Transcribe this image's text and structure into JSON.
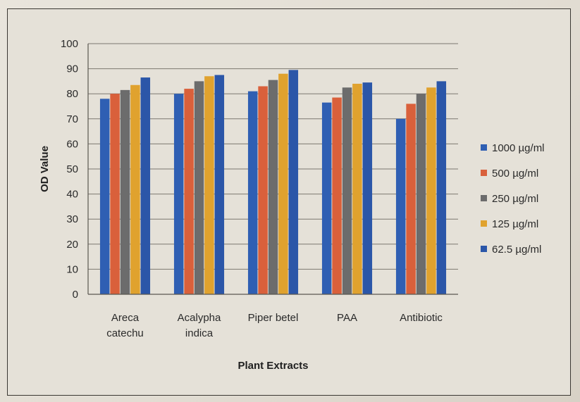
{
  "chart_data": {
    "type": "bar",
    "title": "",
    "xlabel": "Plant Extracts",
    "ylabel": "OD Value",
    "ylim": [
      0,
      100
    ],
    "yticks": [
      0,
      10,
      20,
      30,
      40,
      50,
      60,
      70,
      80,
      90,
      100
    ],
    "grid": true,
    "legend_position": "right",
    "categories": [
      [
        "Areca",
        "catechu"
      ],
      [
        "Acalypha",
        "indica"
      ],
      [
        "Piper betel"
      ],
      [
        "PAA"
      ],
      [
        "Antibiotic"
      ]
    ],
    "series": [
      {
        "name": "1000 µg/ml",
        "color": "#2f5fb3",
        "values": [
          78,
          80,
          81,
          76.5,
          70
        ]
      },
      {
        "name": "500 µg/ml",
        "color": "#d9603b",
        "values": [
          80,
          82,
          83,
          78.5,
          76
        ]
      },
      {
        "name": "250 µg/ml",
        "color": "#6c6c6c",
        "values": [
          81.5,
          85,
          85.5,
          82.5,
          80
        ]
      },
      {
        "name": "125 µg/ml",
        "color": "#e0a22e",
        "values": [
          83.5,
          87,
          88,
          84,
          82.5
        ]
      },
      {
        "name": "62.5 µg/ml",
        "color": "#2b56a8",
        "values": [
          86.5,
          87.5,
          89.5,
          84.5,
          85
        ]
      }
    ]
  }
}
